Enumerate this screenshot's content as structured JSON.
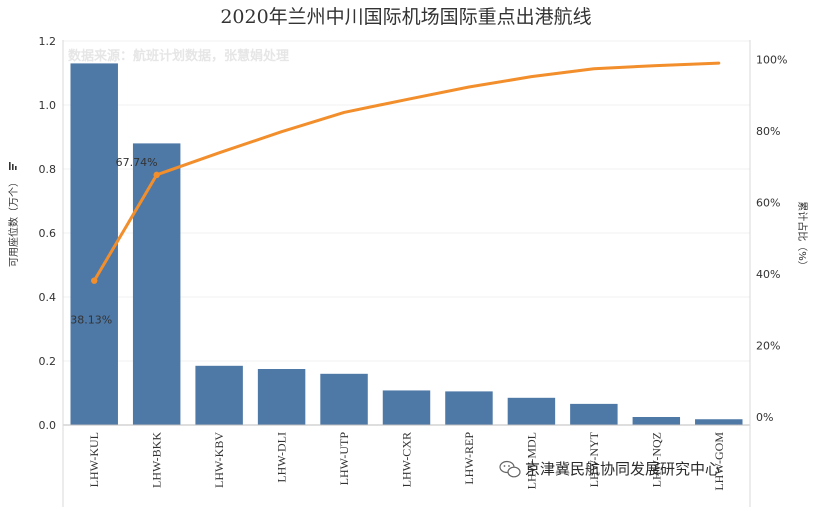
{
  "chart_data": {
    "type": "bar",
    "title": "2020年兰州中川国际机场国际重点出港航线",
    "source_note": "数据来源：航班计划数据，张慧娟处理",
    "ylabel": "可用座位数（万个）",
    "y2label": "累计占比（%）",
    "ylim": [
      0,
      1.2
    ],
    "y2lim": [
      0,
      105
    ],
    "yticks": [
      "0.0",
      "0.2",
      "0.4",
      "0.6",
      "0.8",
      "1.0",
      "1.2"
    ],
    "y2ticks": [
      "0%",
      "20%",
      "40%",
      "60%",
      "80%",
      "100%"
    ],
    "categories": [
      "LHW-KUL",
      "LHW-BKK",
      "LHW-KBV",
      "LHW-DLI",
      "LHW-UTP",
      "LHW-CXR",
      "LHW-REP",
      "LHW-MDL",
      "LHW-NYT",
      "LHW-NQZ",
      "LHW-GOM"
    ],
    "series": [
      {
        "type": "bar",
        "values": [
          1.13,
          0.88,
          0.185,
          0.175,
          0.16,
          0.108,
          0.105,
          0.085,
          0.066,
          0.025,
          0.018
        ]
      },
      {
        "type": "line",
        "axis": "right",
        "values": [
          38.13,
          67.74,
          73.9,
          79.8,
          85.2,
          88.8,
          92.3,
          95.2,
          97.4,
          98.3,
          99.0
        ]
      }
    ],
    "data_labels": [
      "38.13%",
      "67.74%"
    ],
    "grid": true,
    "colors": {
      "bar": "#4e79a7",
      "line": "#f28e2b",
      "grid": "#f0f0f0"
    }
  },
  "footer_watermark": "京津冀民航协同发展研究中心"
}
